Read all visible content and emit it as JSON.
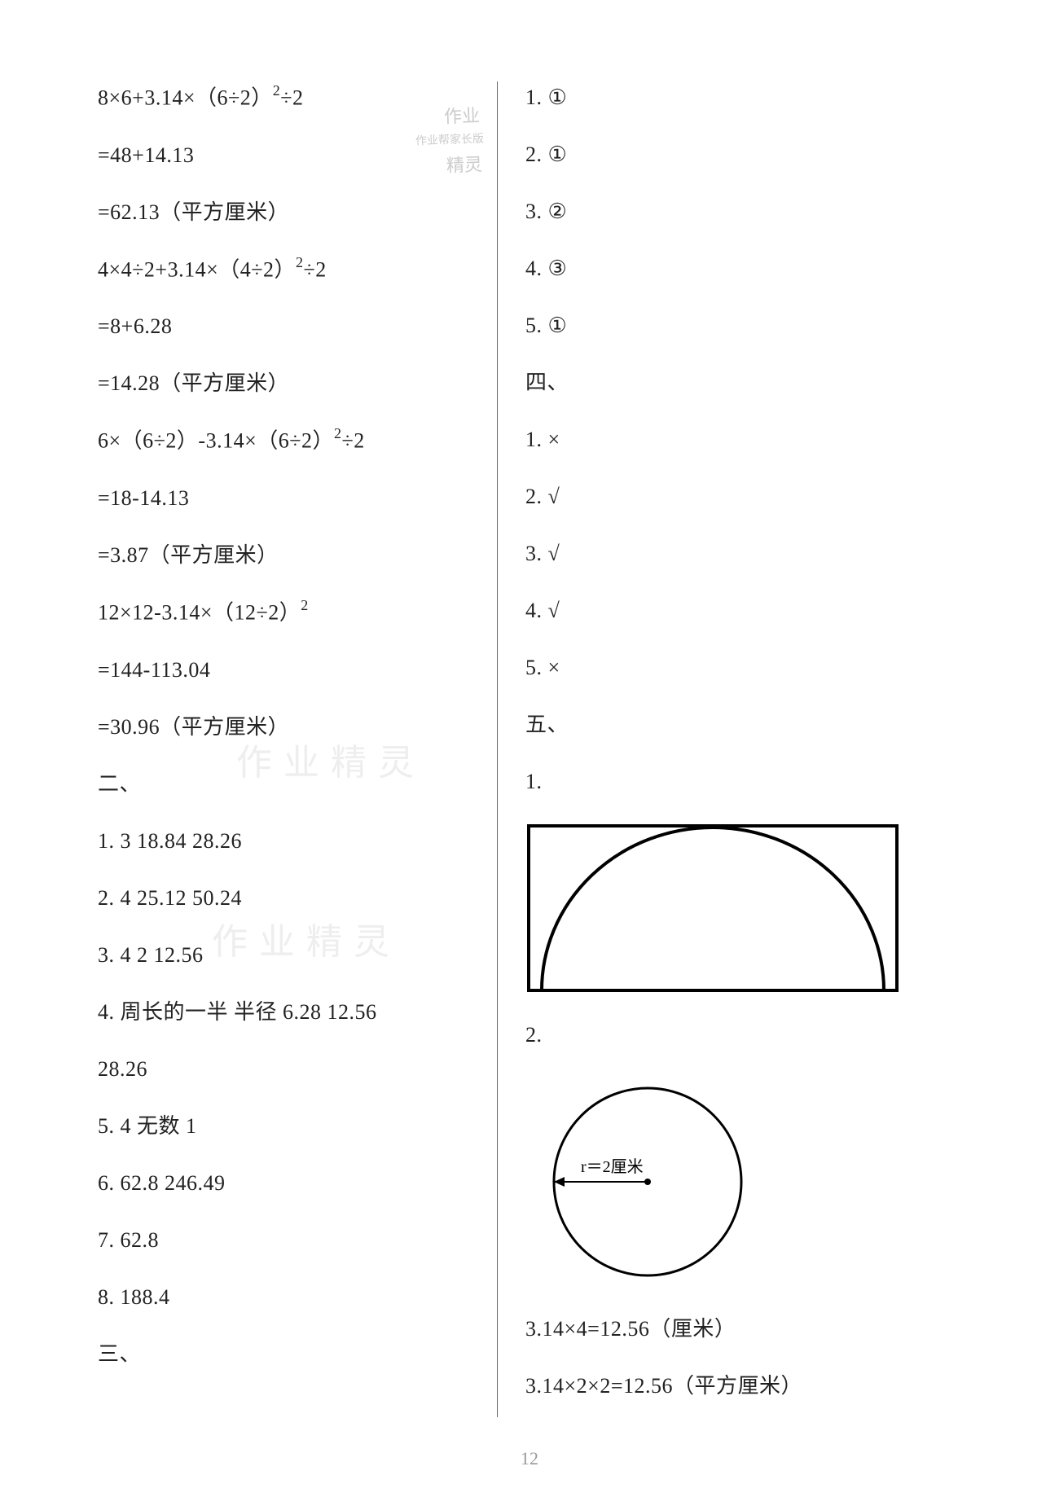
{
  "left": {
    "lines": [
      {
        "t": "8×6+3.14×（6÷2）²÷2",
        "sup": true
      },
      {
        "t": "=48+14.13"
      },
      {
        "t": "=62.13（平方厘米）"
      },
      {
        "t": "4×4÷2+3.14×（4÷2）²÷2",
        "sup": true
      },
      {
        "t": "=8+6.28"
      },
      {
        "t": "=14.28（平方厘米）"
      },
      {
        "t": "6×（6÷2）-3.14×（6÷2）²÷2",
        "sup": true
      },
      {
        "t": "=18-14.13"
      },
      {
        "t": "=3.87（平方厘米）"
      },
      {
        "t": "12×12-3.14×（12÷2）²",
        "sup": true
      },
      {
        "t": "=144-113.04"
      },
      {
        "t": "=30.96（平方厘米）"
      },
      {
        "t": "二、"
      },
      {
        "t": "1.  3   18.84   28.26"
      },
      {
        "t": "2.  4   25.12   50.24"
      },
      {
        "t": "3.  4   2   12.56"
      },
      {
        "t": "4.  周长的一半   半径   6.28   12.56"
      },
      {
        "t": "28.26"
      },
      {
        "t": "5.  4   无数   1"
      },
      {
        "t": "6.  62.8   246.49"
      },
      {
        "t": "7.  62.8"
      },
      {
        "t": "8.  188.4"
      },
      {
        "t": "三、"
      }
    ]
  },
  "right": {
    "lines_top": [
      "1.  ①",
      "2.  ①",
      "3.  ②",
      "4.  ③",
      "5.  ①",
      "四、",
      "1.  ×",
      "2.  √",
      "3.  √",
      "4.  √",
      "5.  ×",
      "五、",
      "1."
    ],
    "label_2": "2.",
    "circle_label": "r＝2厘米",
    "lines_bottom": [
      "3.14×4=12.56（厘米）",
      "3.14×2×2=12.56（平方厘米）"
    ]
  },
  "page": "12",
  "stamps": {
    "top1": "作业",
    "top2a": "作业帮家长版",
    "top2b": "精灵",
    "wm1": "作业精灵",
    "wm2": "作业精灵"
  },
  "colors": {
    "stroke": "#000000"
  }
}
